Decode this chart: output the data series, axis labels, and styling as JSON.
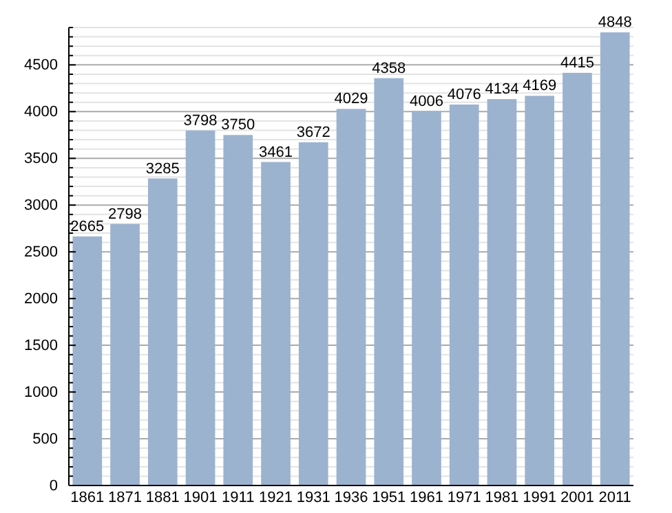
{
  "chart_data": {
    "type": "bar",
    "categories": [
      "1861",
      "1871",
      "1881",
      "1901",
      "1911",
      "1921",
      "1931",
      "1936",
      "1951",
      "1961",
      "1971",
      "1981",
      "1991",
      "2001",
      "2011"
    ],
    "values": [
      2665,
      2798,
      3285,
      3798,
      3750,
      3461,
      3672,
      4029,
      4358,
      4006,
      4076,
      4134,
      4169,
      4415,
      4848
    ],
    "color": "#9cb3cf",
    "ylim": [
      0,
      4900
    ],
    "yticks": [
      0,
      {
        "value": 100,
        "label": null
      },
      {
        "value": 200,
        "label": null
      },
      {
        "value": 300,
        "label": null
      },
      {
        "value": 400,
        "label": null
      },
      500,
      {
        "value": 600,
        "label": null
      },
      {
        "value": 700,
        "label": null
      },
      {
        "value": 800,
        "label": null
      },
      {
        "value": 900,
        "label": null
      },
      1000,
      {
        "value": 1100,
        "label": null
      },
      {
        "value": 1200,
        "label": null
      },
      {
        "value": 1300,
        "label": null
      },
      {
        "value": 1400,
        "label": null
      },
      1500,
      {
        "value": 1600,
        "label": null
      },
      {
        "value": 1700,
        "label": null
      },
      {
        "value": 1800,
        "label": null
      },
      {
        "value": 1900,
        "label": null
      },
      2000,
      {
        "value": 2100,
        "label": null
      },
      {
        "value": 2200,
        "label": null
      },
      {
        "value": 2300,
        "label": null
      },
      {
        "value": 2400,
        "label": null
      },
      2500,
      {
        "value": 2600,
        "label": null
      },
      {
        "value": 2700,
        "label": null
      },
      {
        "value": 2800,
        "label": null
      },
      {
        "value": 2900,
        "label": null
      },
      3000,
      {
        "value": 3100,
        "label": null
      },
      {
        "value": 3200,
        "label": null
      },
      {
        "value": 3300,
        "label": null
      },
      {
        "value": 3400,
        "label": null
      },
      3500,
      {
        "value": 3600,
        "label": null
      },
      {
        "value": 3700,
        "label": null
      },
      {
        "value": 3800,
        "label": null
      },
      {
        "value": 3900,
        "label": null
      },
      4000,
      {
        "value": 4100,
        "label": null
      },
      {
        "value": 4200,
        "label": null
      },
      {
        "value": 4300,
        "label": null
      },
      {
        "value": 4400,
        "label": null
      },
      4500,
      {
        "value": 4600,
        "label": null
      },
      {
        "value": 4700,
        "label": null
      },
      {
        "value": 4800,
        "label": null
      },
      {
        "value": 4900,
        "label": null
      }
    ],
    "grid": "y",
    "data_labels": true
  }
}
